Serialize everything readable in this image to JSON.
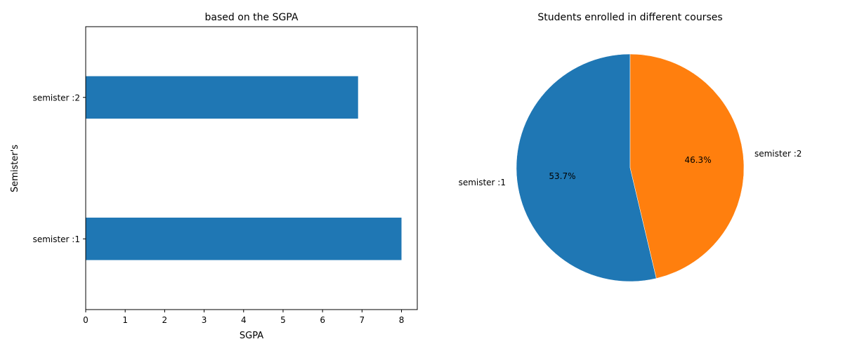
{
  "chart_data": [
    {
      "type": "bar",
      "orientation": "horizontal",
      "title": "based on the SGPA",
      "xlabel": "SGPA",
      "ylabel": "Semister's",
      "categories": [
        "semister :1",
        "semister :2"
      ],
      "values": [
        8.0,
        6.9
      ],
      "xlim": [
        0,
        8.4
      ],
      "xticks": [
        "0",
        "1",
        "2",
        "3",
        "4",
        "5",
        "6",
        "7",
        "8"
      ],
      "grid": false,
      "color": "#1f77b4"
    },
    {
      "type": "pie",
      "title": "Students enrolled in different courses",
      "labels": [
        "semister :1",
        "semister :2"
      ],
      "values": [
        53.7,
        46.3
      ],
      "autopct": [
        "53.7%",
        "46.3%"
      ],
      "colors": [
        "#1f77b4",
        "#ff7f0e"
      ],
      "start_angle": "top",
      "direction": "counterclockwise"
    }
  ]
}
